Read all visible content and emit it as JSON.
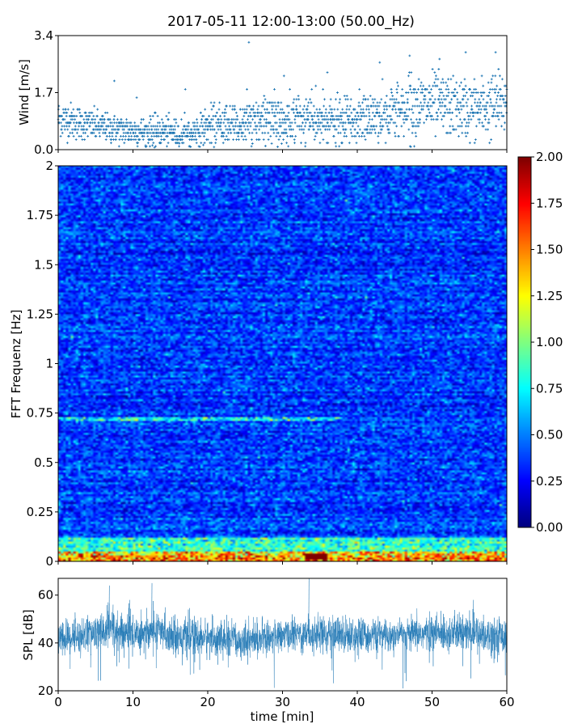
{
  "title": "2017-05-11 12:00-13:00 (50.00_Hz)",
  "chart_data": [
    {
      "type": "scatter",
      "panel": "wind",
      "ylabel": "Wind [m/s]",
      "xlim": [
        0,
        60
      ],
      "ylim": [
        0,
        3.4
      ],
      "yticks": [
        "0.0",
        "1.7",
        "3.4"
      ],
      "marker": "+",
      "color": "#1f77b4",
      "profile": {
        "x_min": [
          0,
          2,
          5,
          8,
          11,
          14,
          17,
          20,
          23,
          26,
          29,
          32,
          35,
          38,
          41,
          44,
          47,
          50,
          53,
          56,
          58,
          60
        ],
        "y_center": [
          0.95,
          0.85,
          0.7,
          0.6,
          0.55,
          0.55,
          0.45,
          0.7,
          0.75,
          0.8,
          0.85,
          0.9,
          0.85,
          0.8,
          0.95,
          1.05,
          1.3,
          1.35,
          1.25,
          1.2,
          1.3,
          1.4
        ],
        "y_spread": [
          0.5,
          0.45,
          0.4,
          0.4,
          0.4,
          0.4,
          0.35,
          0.5,
          0.55,
          0.6,
          0.7,
          0.7,
          0.65,
          0.6,
          0.65,
          0.7,
          0.8,
          0.85,
          0.8,
          0.8,
          0.85,
          0.9
        ]
      },
      "outliers": [
        [
          25.5,
          3.2
        ],
        [
          7.5,
          2.05
        ],
        [
          17,
          1.8
        ],
        [
          43,
          2.6
        ],
        [
          47,
          2.8
        ],
        [
          51,
          2.7
        ],
        [
          54.5,
          2.9
        ],
        [
          58.5,
          2.9
        ],
        [
          36,
          2.3
        ],
        [
          30.2,
          2.2
        ],
        [
          10.5,
          1.55
        ]
      ]
    },
    {
      "type": "heatmap",
      "panel": "spectrogram",
      "ylabel": "FFT Frequenz [Hz]",
      "xlim": [
        0,
        60
      ],
      "ylim": [
        0,
        2
      ],
      "yticks": [
        "0",
        "0.25",
        "0.5",
        "0.75",
        "1",
        "1.25",
        "1.5",
        "1.75",
        "2"
      ],
      "colormap": "jet",
      "clim": [
        0,
        2
      ],
      "colorbar_ticks": [
        "0.00",
        "0.25",
        "0.50",
        "0.75",
        "1.00",
        "1.25",
        "1.50",
        "1.75",
        "2.00"
      ],
      "features": [
        {
          "name": "low-frequency band",
          "f_min": 0.0,
          "f_max": 0.05,
          "value": 1.6
        },
        {
          "name": "second harmonic band",
          "f_min": 0.05,
          "f_max": 0.12,
          "value": 0.9
        },
        {
          "name": "0.72 Hz line",
          "f": 0.72,
          "t_range": [
            0,
            38
          ],
          "value": 1.0
        },
        {
          "name": "hot spot",
          "f_range": [
            0.01,
            0.04
          ],
          "t_range": [
            33,
            36
          ],
          "value": 2.0
        }
      ]
    },
    {
      "type": "line",
      "panel": "spl",
      "ylabel": "SPL [dB]",
      "xlabel": "time [min]",
      "xlim": [
        0,
        60
      ],
      "ylim": [
        20,
        67
      ],
      "yticks": [
        "20",
        "40",
        "60"
      ],
      "xticks": [
        "0",
        "10",
        "20",
        "30",
        "40",
        "50",
        "60"
      ],
      "color": "#1f77b4",
      "profile": {
        "x_min": [
          0,
          2,
          5,
          7,
          8,
          10,
          13,
          16,
          20,
          23,
          25,
          30,
          33,
          35,
          40,
          45,
          50,
          55,
          60
        ],
        "mean": [
          41,
          43,
          44,
          46,
          44,
          44,
          45,
          43,
          42,
          41,
          41,
          43,
          44,
          44,
          43,
          43,
          44,
          44,
          43
        ],
        "spread": [
          5,
          5,
          5,
          6,
          6,
          6,
          5,
          5,
          5,
          5,
          5,
          4,
          5,
          5,
          5,
          4,
          5,
          5,
          5
        ]
      },
      "peaks": [
        [
          6.8,
          64
        ],
        [
          12.5,
          65
        ],
        [
          33.5,
          67
        ],
        [
          9.5,
          58
        ],
        [
          55.5,
          58
        ],
        [
          7.3,
          56
        ]
      ]
    }
  ]
}
